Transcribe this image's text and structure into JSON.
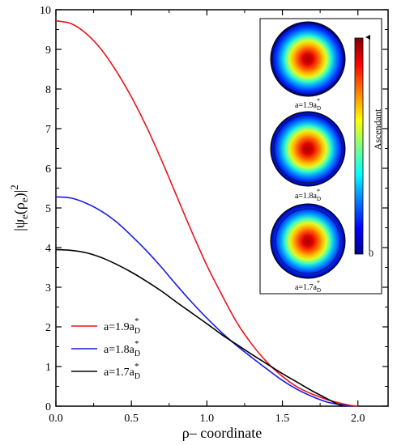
{
  "chart_data": {
    "type": "line",
    "xlabel": "ρ– coordinate",
    "ylabel": "|ψe(ρe)|²",
    "ylabel_parts": {
      "psi": "|ψ",
      "e1": "e",
      "open": "(ρ",
      "e2": "e",
      "close": ")|",
      "sup": "2"
    },
    "xlim": [
      0.0,
      2.2
    ],
    "ylim": [
      0,
      10
    ],
    "x_ticks": [
      0.0,
      0.5,
      1.0,
      1.5,
      2.0
    ],
    "x_tick_labels": [
      "0.0",
      "0.5",
      "1.0",
      "1.5",
      "2.0"
    ],
    "y_ticks": [
      0,
      1,
      2,
      3,
      4,
      5,
      6,
      7,
      8,
      9,
      10
    ],
    "y_tick_labels": [
      "0",
      "1",
      "2",
      "3",
      "4",
      "5",
      "6",
      "7",
      "8",
      "9",
      "10"
    ],
    "grid": false,
    "legend_position": "bottom-left",
    "series": [
      {
        "name": "a=1.9a*D",
        "legend": {
          "main": "a=1.9a",
          "sub": "D",
          "sup": "*"
        },
        "color": "#e8141b",
        "x": [
          0.0,
          0.1,
          0.2,
          0.3,
          0.4,
          0.5,
          0.6,
          0.7,
          0.8,
          0.9,
          1.0,
          1.1,
          1.2,
          1.3,
          1.4,
          1.5,
          1.6,
          1.7,
          1.8,
          1.9,
          1.95,
          2.0
        ],
        "y": [
          9.72,
          9.65,
          9.4,
          9.0,
          8.45,
          7.8,
          7.05,
          6.2,
          5.3,
          4.4,
          3.55,
          2.8,
          2.1,
          1.55,
          1.1,
          0.75,
          0.48,
          0.3,
          0.16,
          0.06,
          0.02,
          0.0
        ]
      },
      {
        "name": "a=1.8a*D",
        "legend": {
          "main": "a=1.8a",
          "sub": "D",
          "sup": "*"
        },
        "color": "#1a1ae0",
        "x": [
          0.0,
          0.1,
          0.2,
          0.3,
          0.4,
          0.5,
          0.6,
          0.7,
          0.8,
          0.9,
          1.0,
          1.1,
          1.2,
          1.3,
          1.4,
          1.5,
          1.6,
          1.7,
          1.8,
          1.9,
          1.95
        ],
        "y": [
          5.28,
          5.25,
          5.12,
          4.92,
          4.65,
          4.3,
          3.92,
          3.5,
          3.05,
          2.62,
          2.22,
          1.85,
          1.52,
          1.22,
          0.93,
          0.65,
          0.42,
          0.24,
          0.1,
          0.03,
          0.0
        ]
      },
      {
        "name": "a=1.7a*D",
        "legend": {
          "main": "a=1.7a",
          "sub": "D",
          "sup": "*"
        },
        "color": "#000000",
        "x": [
          0.0,
          0.1,
          0.2,
          0.3,
          0.4,
          0.5,
          0.6,
          0.7,
          0.8,
          0.9,
          1.0,
          1.1,
          1.2,
          1.3,
          1.4,
          1.5,
          1.6,
          1.7,
          1.8,
          1.85,
          1.9
        ],
        "y": [
          3.95,
          3.93,
          3.87,
          3.75,
          3.58,
          3.38,
          3.15,
          2.9,
          2.62,
          2.35,
          2.08,
          1.8,
          1.55,
          1.3,
          1.06,
          0.82,
          0.6,
          0.38,
          0.18,
          0.08,
          0.0
        ]
      }
    ],
    "inset": {
      "panels": [
        {
          "label": {
            "main": "a=1.9a",
            "sub": "D",
            "sup": "*"
          }
        },
        {
          "label": {
            "main": "a=1.8a",
            "sub": "D",
            "sup": "*"
          }
        },
        {
          "label": {
            "main": "a=1.7a",
            "sub": "D",
            "sup": "*"
          }
        }
      ],
      "colorbar": {
        "label": "Ascendant",
        "bottom_label": "0",
        "colors": [
          "#00008f",
          "#0000ff",
          "#0080ff",
          "#00ffff",
          "#80ff80",
          "#ffff00",
          "#ff8000",
          "#ff0000",
          "#800000"
        ]
      }
    }
  }
}
